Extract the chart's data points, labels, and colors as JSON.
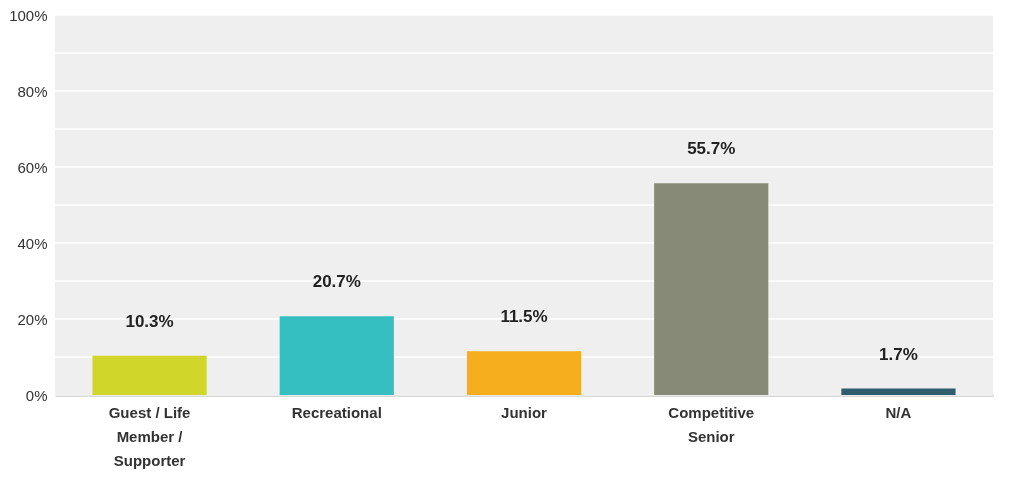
{
  "chart_data": {
    "type": "bar",
    "categories": [
      "Guest / Life Member / Supporter",
      "Recreational",
      "Junior",
      "Competitive Senior",
      "N/A"
    ],
    "values": [
      10.3,
      20.7,
      11.5,
      55.7,
      1.7
    ],
    "value_labels": [
      "10.3%",
      "20.7%",
      "11.5%",
      "55.7%",
      "1.7%"
    ],
    "colors": [
      "#d0d62a",
      "#35bfc1",
      "#f6ae1f",
      "#888a78",
      "#2e5e6e"
    ],
    "ylim": [
      0,
      100
    ],
    "yticks": [
      {
        "value": 0,
        "label": "0%"
      },
      {
        "value": 10,
        "label": null
      },
      {
        "value": 20,
        "label": "20%"
      },
      {
        "value": 30,
        "label": null
      },
      {
        "value": 40,
        "label": "40%"
      },
      {
        "value": 50,
        "label": null
      },
      {
        "value": 60,
        "label": "60%"
      },
      {
        "value": 70,
        "label": null
      },
      {
        "value": 80,
        "label": "80%"
      },
      {
        "value": 90,
        "label": null
      },
      {
        "value": 100,
        "label": "100%"
      }
    ],
    "grid": "y"
  }
}
